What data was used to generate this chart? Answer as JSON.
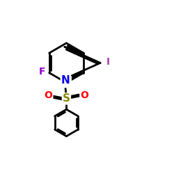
{
  "bg_color": "#ffffff",
  "bond_color": "#000000",
  "N_color": "#0000ee",
  "F_color": "#9900cc",
  "I_color": "#aa44aa",
  "S_color": "#888800",
  "O_color": "#ff0000",
  "bond_width": 2.0,
  "font_size_atom": 11,
  "font_size_label": 10,
  "xlim": [
    0,
    10
  ],
  "ylim": [
    0,
    10
  ]
}
